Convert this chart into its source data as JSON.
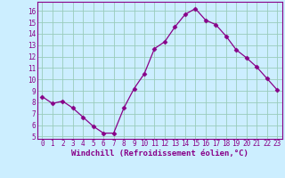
{
  "x": [
    0,
    1,
    2,
    3,
    4,
    5,
    6,
    7,
    8,
    9,
    10,
    11,
    12,
    13,
    14,
    15,
    16,
    17,
    18,
    19,
    20,
    21,
    22,
    23
  ],
  "y": [
    8.5,
    7.9,
    8.1,
    7.5,
    6.7,
    5.9,
    5.3,
    5.3,
    7.5,
    9.2,
    10.5,
    12.7,
    13.3,
    14.6,
    15.7,
    16.2,
    15.2,
    14.8,
    13.8,
    12.6,
    11.9,
    11.1,
    10.1,
    9.1
  ],
  "line_color": "#880088",
  "marker": "D",
  "marker_size": 2.5,
  "bg_color": "#cceeff",
  "grid_color": "#99ccbb",
  "xlabel": "Windchill (Refroidissement éolien,°C)",
  "xlabel_color": "#880088",
  "tick_color": "#880088",
  "spine_color": "#880088",
  "xlim": [
    -0.5,
    23.5
  ],
  "ylim": [
    4.8,
    16.8
  ],
  "yticks": [
    5,
    6,
    7,
    8,
    9,
    10,
    11,
    12,
    13,
    14,
    15,
    16
  ],
  "xticks": [
    0,
    1,
    2,
    3,
    4,
    5,
    6,
    7,
    8,
    9,
    10,
    11,
    12,
    13,
    14,
    15,
    16,
    17,
    18,
    19,
    20,
    21,
    22,
    23
  ],
  "tick_fontsize": 5.5,
  "xlabel_fontsize": 6.5
}
